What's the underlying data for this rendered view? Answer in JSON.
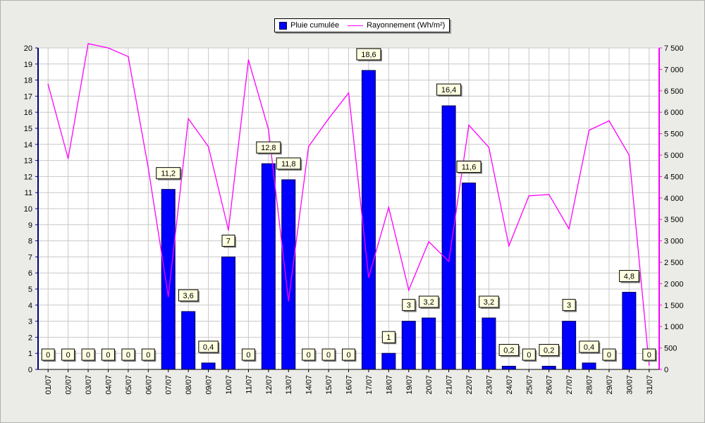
{
  "chart_data": {
    "type": "bar",
    "categories": [
      "01/07",
      "02/07",
      "03/07",
      "04/07",
      "05/07",
      "06/07",
      "07/07",
      "08/07",
      "09/07",
      "10/07",
      "11/07",
      "12/07",
      "13/07",
      "14/07",
      "15/07",
      "16/07",
      "17/07",
      "18/07",
      "19/07",
      "20/07",
      "21/07",
      "22/07",
      "23/07",
      "24/07",
      "25/07",
      "26/07",
      "27/07",
      "28/07",
      "29/07",
      "30/07",
      "31/07"
    ],
    "series": [
      {
        "name": "Pluie cumulée",
        "type": "bar",
        "axis": "left",
        "color": "#0000ff",
        "values": [
          0,
          0,
          0,
          0,
          0,
          0,
          11.2,
          3.6,
          0.4,
          7,
          0,
          12.8,
          11.8,
          0,
          0,
          0,
          18.6,
          1,
          3,
          3.2,
          16.4,
          11.6,
          3.2,
          0.2,
          0,
          0.2,
          3,
          0.4,
          0,
          4.8,
          0
        ],
        "labels": [
          "0",
          "0",
          "0",
          "0",
          "0",
          "0",
          "11,2",
          "3,6",
          "0,4",
          "7",
          "0",
          "12,8",
          "11,8",
          "0",
          "0",
          "0",
          "18,6",
          "1",
          "3",
          "3,2",
          "16,4",
          "11,6",
          "3,2",
          "0,2",
          "0",
          "0,2",
          "3",
          "0,4",
          "0",
          "4,8",
          "0"
        ]
      },
      {
        "name": "Rayonnement (Wh/m²)",
        "type": "line",
        "axis": "right",
        "color": "#ff00ff",
        "values": [
          6650,
          4920,
          7600,
          7500,
          7300,
          4700,
          1700,
          5850,
          5200,
          3250,
          7220,
          5600,
          1600,
          5200,
          5850,
          6450,
          2150,
          3780,
          1850,
          2980,
          2520,
          5700,
          5180,
          2880,
          4050,
          4080,
          3280,
          5580,
          5800,
          5000,
          100
        ]
      }
    ],
    "y_left": {
      "min": 0,
      "max": 20,
      "ticks": [
        "0",
        "1",
        "2",
        "3",
        "4",
        "5",
        "6",
        "7",
        "8",
        "9",
        "10",
        "11",
        "12",
        "13",
        "14",
        "15",
        "16",
        "17",
        "18",
        "19",
        "20"
      ]
    },
    "y_right": {
      "min": 0,
      "max": 7500,
      "ticks": [
        "0",
        "500",
        "1 000",
        "1 500",
        "2 000",
        "2 500",
        "3 000",
        "3 500",
        "4 000",
        "4 500",
        "5 000",
        "5 500",
        "6 000",
        "6 500",
        "7 000",
        "7 500"
      ]
    },
    "grid": true,
    "legend_position": "top-center"
  }
}
